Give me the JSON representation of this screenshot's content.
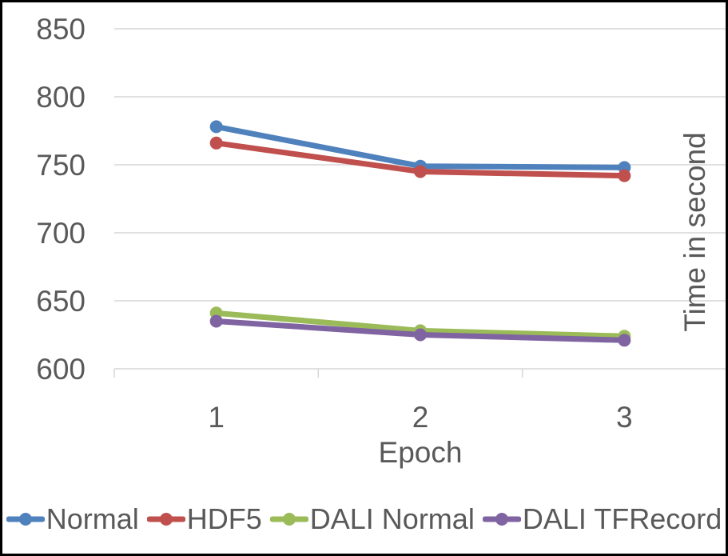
{
  "chart": {
    "background": "#FFFFFF",
    "border_color": "#000000",
    "text_color": "#595959",
    "grid_color": "#D6D6D6"
  },
  "chart_data": {
    "type": "line",
    "categories": [
      "1",
      "2",
      "3"
    ],
    "series": [
      {
        "name": "Normal",
        "color": "#4F81BD",
        "values": [
          778,
          749,
          748
        ]
      },
      {
        "name": "HDF5",
        "color": "#C0504D",
        "values": [
          766,
          745,
          742
        ]
      },
      {
        "name": "DALI Normal",
        "color": "#9BBB59",
        "values": [
          641,
          628,
          624
        ]
      },
      {
        "name": "DALI TFRecord",
        "color": "#8064A2",
        "values": [
          635,
          625,
          621
        ]
      }
    ],
    "xlabel": "Epoch",
    "ylabel": "Time in second",
    "ylabel_side": "right",
    "ylim": [
      600,
      850
    ],
    "yticks": [
      600,
      650,
      700,
      750,
      800,
      850
    ],
    "grid": true,
    "legend_position": "bottom",
    "legend": [
      "Normal",
      "HDF5",
      "DALI Normal",
      "DALI TFRecord"
    ]
  }
}
